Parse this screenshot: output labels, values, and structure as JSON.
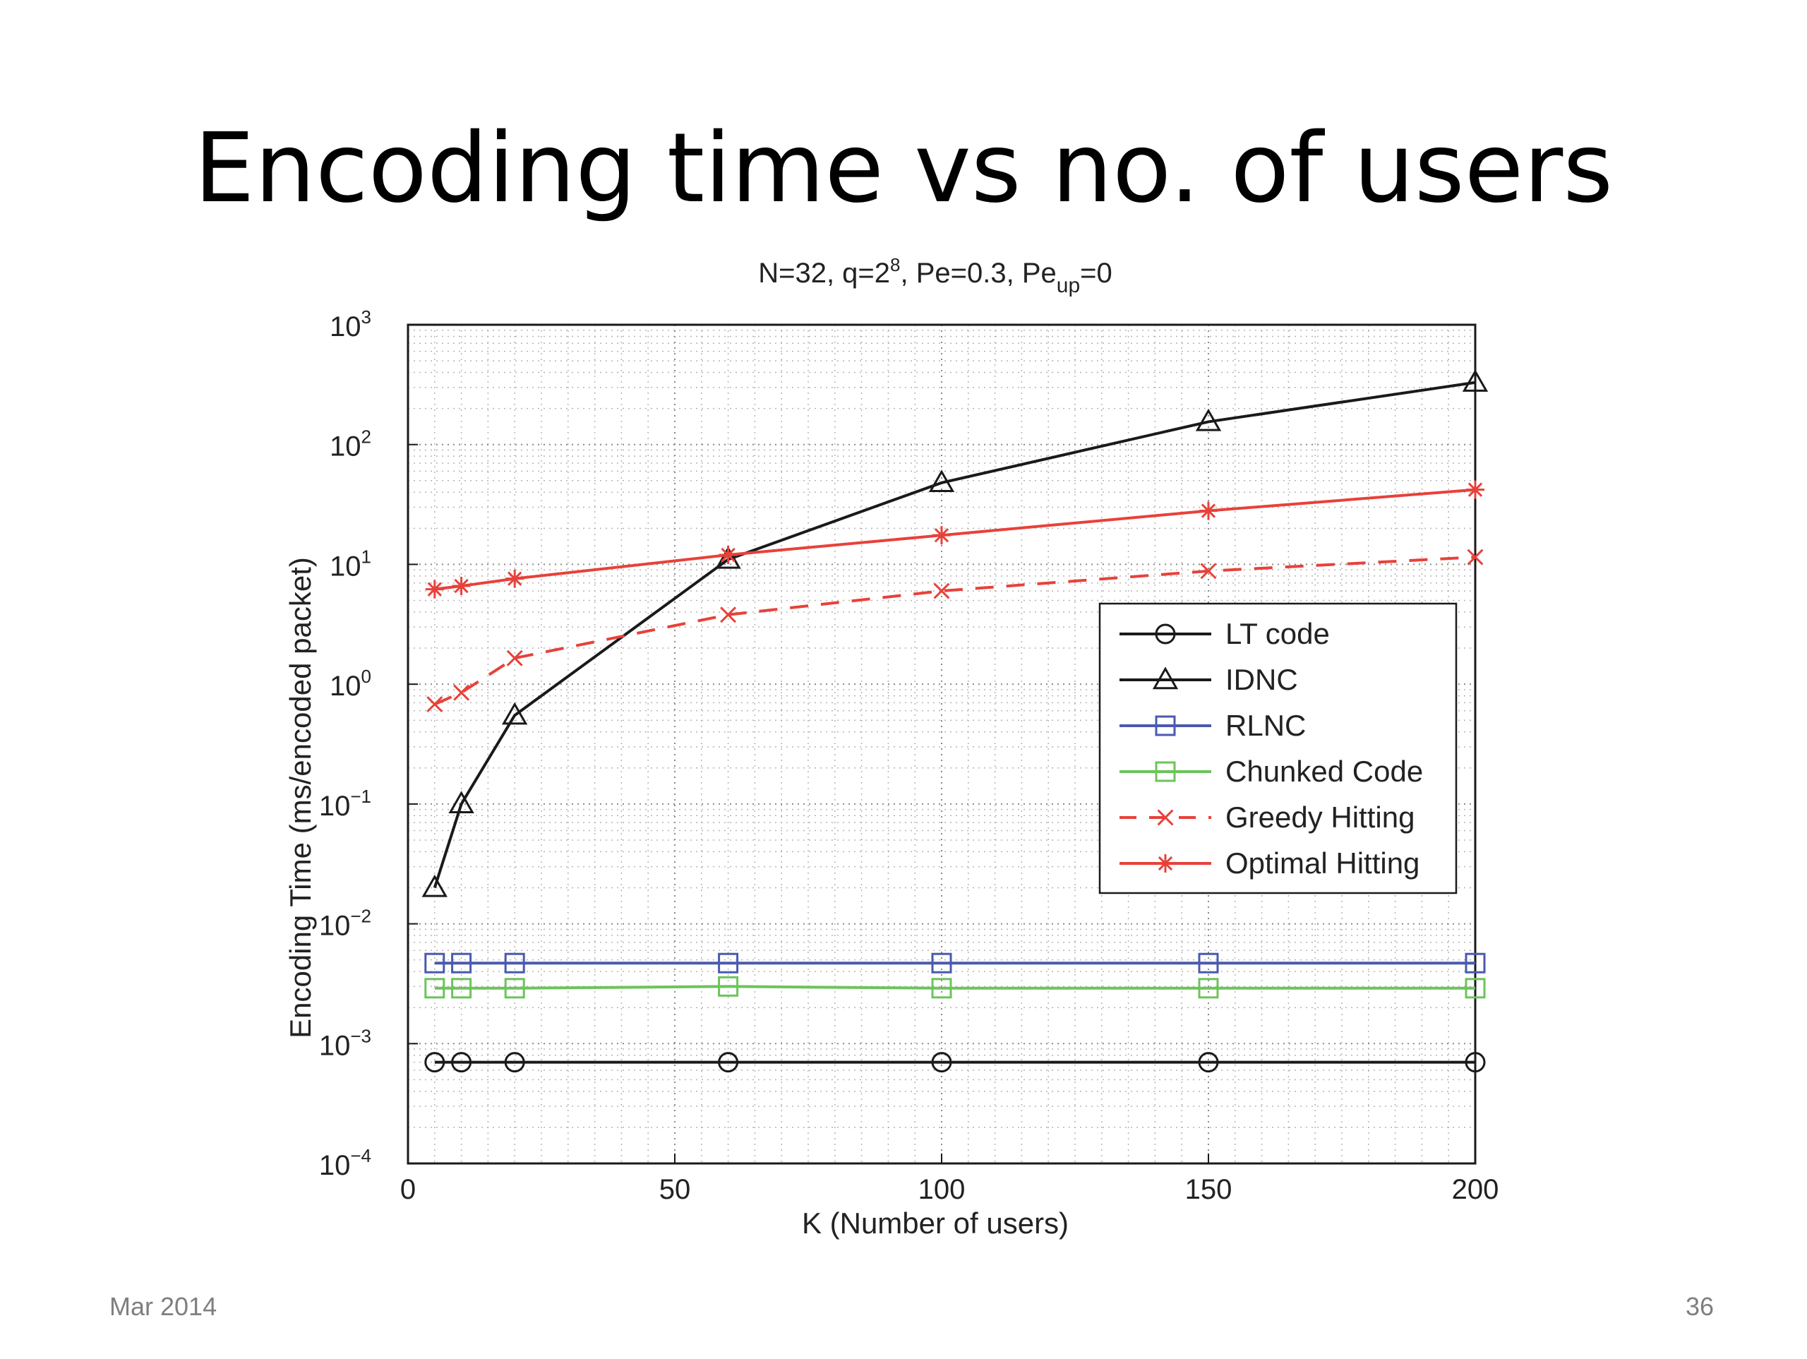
{
  "slide": {
    "title": "Encoding time vs no. of users",
    "footer_date": "Mar 2014",
    "page_number": "36"
  },
  "chart_data": {
    "type": "line",
    "title_parts": [
      "N=32, q=2",
      "8",
      ", Pe=0.3, Pe",
      "up",
      "=0"
    ],
    "xlabel": "K (Number of users)",
    "ylabel": "Encoding Time (ms/encoded packet)",
    "xlim": [
      0,
      200
    ],
    "ylim": [
      0.0001,
      1000
    ],
    "yscale": "log",
    "xticks": [
      0,
      50,
      100,
      150,
      200
    ],
    "xtick_labels": [
      "0",
      "50",
      "100",
      "150",
      "200"
    ],
    "ytick_exponents": [
      -4,
      -3,
      -2,
      -1,
      0,
      1,
      2,
      3
    ],
    "ytick_labels": [
      "10",
      "10",
      "10",
      "10",
      "10",
      "10",
      "10",
      "10"
    ],
    "ytick_superscripts": [
      "−4",
      "−3",
      "−2",
      "−1",
      "0",
      "1",
      "2",
      "3"
    ],
    "grid": true,
    "legend_position": "center-right",
    "x": [
      5,
      10,
      20,
      60,
      100,
      150,
      200
    ],
    "series": [
      {
        "name": "LT code",
        "values": [
          0.0007,
          0.0007,
          0.0007,
          0.0007,
          0.0007,
          0.0007,
          0.0007
        ],
        "color": "#1a1a1a",
        "marker": "circle",
        "dash": false
      },
      {
        "name": "IDNC",
        "values": [
          0.02,
          0.1,
          0.55,
          11,
          48,
          155,
          330
        ],
        "color": "#1a1a1a",
        "marker": "triangle",
        "dash": false
      },
      {
        "name": "RLNC",
        "values": [
          0.0047,
          0.0047,
          0.0047,
          0.0047,
          0.0047,
          0.0047,
          0.0047
        ],
        "color": "#4a5ab0",
        "marker": "square",
        "dash": false
      },
      {
        "name": "Chunked Code",
        "values": [
          0.0029,
          0.0029,
          0.0029,
          0.003,
          0.0029,
          0.0029,
          0.0029
        ],
        "color": "#6cc45a",
        "marker": "square",
        "dash": false
      },
      {
        "name": "Greedy Hitting",
        "values": [
          0.68,
          0.85,
          1.65,
          3.8,
          6,
          8.8,
          11.5
        ],
        "color": "#e8413a",
        "marker": "x",
        "dash": true
      },
      {
        "name": "Optimal Hitting",
        "values": [
          6.2,
          6.6,
          7.6,
          12,
          17.5,
          28,
          42
        ],
        "color": "#e8413a",
        "marker": "star",
        "dash": false
      }
    ]
  }
}
